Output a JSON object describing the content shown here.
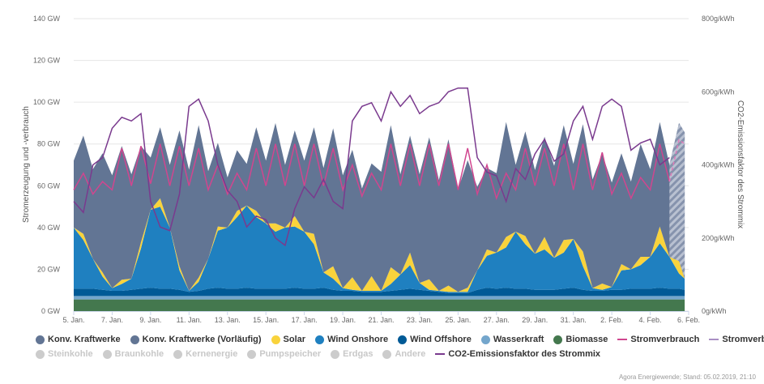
{
  "chart_data": {
    "type": "area",
    "y_left": {
      "label": "Stromerzeugung und -verbrauch",
      "range": [
        0,
        140
      ],
      "ticks": [
        "0 GW",
        "20 GW",
        "40 GW",
        "60 GW",
        "80 GW",
        "100 GW",
        "120 GW",
        "140 GW"
      ]
    },
    "y_right": {
      "label": "CO2-Emissionsfaktor des Strommix",
      "range": [
        0,
        800
      ],
      "ticks": [
        "0g/kWh",
        "200g/kWh",
        "400g/kWh",
        "600g/kWh",
        "800g/kWh"
      ]
    },
    "x_range": [
      "2019-01-05 00:00",
      "2019-02-06 00:00"
    ],
    "x_ticks": [
      "5. Jan.",
      "7. Jan.",
      "9. Jan.",
      "11. Jan.",
      "13. Jan.",
      "15. Jan.",
      "17. Jan.",
      "19. Jan.",
      "21. Jan.",
      "23. Jan.",
      "25. Jan.",
      "27. Jan.",
      "29. Jan.",
      "31. Jan.",
      "2. Feb.",
      "4. Feb.",
      "6. Feb."
    ],
    "grid": true,
    "preliminary_from": "2019-02-05 00:00",
    "t": [
      "2019-01-05 00:00",
      "2019-01-05 12:00",
      "2019-01-06 00:00",
      "2019-01-06 12:00",
      "2019-01-07 00:00",
      "2019-01-07 12:00",
      "2019-01-08 00:00",
      "2019-01-08 12:00",
      "2019-01-09 00:00",
      "2019-01-09 12:00",
      "2019-01-10 00:00",
      "2019-01-10 12:00",
      "2019-01-11 00:00",
      "2019-01-11 12:00",
      "2019-01-12 00:00",
      "2019-01-12 12:00",
      "2019-01-13 00:00",
      "2019-01-13 12:00",
      "2019-01-14 00:00",
      "2019-01-14 12:00",
      "2019-01-15 00:00",
      "2019-01-15 12:00",
      "2019-01-16 00:00",
      "2019-01-16 12:00",
      "2019-01-17 00:00",
      "2019-01-17 12:00",
      "2019-01-18 00:00",
      "2019-01-18 12:00",
      "2019-01-19 00:00",
      "2019-01-19 12:00",
      "2019-01-20 00:00",
      "2019-01-20 12:00",
      "2019-01-21 00:00",
      "2019-01-21 12:00",
      "2019-01-22 00:00",
      "2019-01-22 12:00",
      "2019-01-23 00:00",
      "2019-01-23 12:00",
      "2019-01-24 00:00",
      "2019-01-24 12:00",
      "2019-01-25 00:00",
      "2019-01-25 12:00",
      "2019-01-26 00:00",
      "2019-01-26 12:00",
      "2019-01-27 00:00",
      "2019-01-27 12:00",
      "2019-01-28 00:00",
      "2019-01-28 12:00",
      "2019-01-29 00:00",
      "2019-01-29 12:00",
      "2019-01-30 00:00",
      "2019-01-30 12:00",
      "2019-01-31 00:00",
      "2019-01-31 12:00",
      "2019-02-01 00:00",
      "2019-02-01 12:00",
      "2019-02-02 00:00",
      "2019-02-02 12:00",
      "2019-02-03 00:00",
      "2019-02-03 12:00",
      "2019-02-04 00:00",
      "2019-02-04 12:00",
      "2019-02-05 00:00",
      "2019-02-05 12:00",
      "2019-02-05 19:00"
    ],
    "stack": [
      {
        "name": "Biomasse",
        "color": "#44784e",
        "values": [
          5.6,
          5.6,
          5.6,
          5.6,
          5.6,
          5.6,
          5.6,
          5.6,
          5.6,
          5.6,
          5.6,
          5.6,
          5.6,
          5.6,
          5.6,
          5.6,
          5.6,
          5.6,
          5.6,
          5.6,
          5.6,
          5.6,
          5.6,
          5.6,
          5.6,
          5.6,
          5.6,
          5.6,
          5.6,
          5.6,
          5.6,
          5.6,
          5.6,
          5.6,
          5.6,
          5.6,
          5.6,
          5.6,
          5.6,
          5.6,
          5.6,
          5.6,
          5.6,
          5.6,
          5.6,
          5.6,
          5.6,
          5.6,
          5.6,
          5.6,
          5.6,
          5.6,
          5.6,
          5.6,
          5.6,
          5.6,
          5.6,
          5.6,
          5.6,
          5.6,
          5.6,
          5.6,
          5.6,
          5.6,
          5.6
        ]
      },
      {
        "name": "Wasserkraft",
        "color": "#74a6cc",
        "values": [
          1.6,
          1.6,
          1.6,
          1.6,
          1.6,
          1.6,
          1.6,
          1.6,
          1.6,
          1.6,
          1.6,
          1.6,
          1.6,
          1.6,
          1.6,
          1.6,
          1.6,
          1.6,
          1.6,
          1.6,
          1.6,
          1.6,
          1.6,
          1.6,
          1.6,
          1.6,
          1.6,
          1.6,
          1.6,
          1.6,
          1.6,
          1.6,
          1.6,
          1.6,
          1.6,
          1.6,
          1.6,
          1.6,
          1.6,
          1.6,
          1.6,
          1.6,
          1.6,
          1.6,
          1.6,
          1.6,
          1.6,
          1.6,
          1.6,
          1.6,
          1.6,
          1.6,
          1.6,
          1.6,
          1.6,
          1.6,
          1.6,
          1.6,
          1.6,
          1.6,
          1.6,
          1.6,
          1.6,
          1.6,
          1.6
        ]
      },
      {
        "name": "Wind Offshore",
        "color": "#005a96",
        "values": [
          3.5,
          3.5,
          3.5,
          3,
          2.5,
          2.5,
          3,
          3.5,
          4,
          3.5,
          3.5,
          3,
          2,
          2.5,
          3.5,
          4,
          3.5,
          3.5,
          4,
          3.5,
          3.5,
          3.5,
          3.5,
          4,
          3.5,
          3.5,
          4,
          3,
          2.5,
          2.5,
          2,
          2,
          2,
          2.5,
          3,
          3.5,
          3,
          2.5,
          2,
          1.5,
          1.5,
          1.5,
          3,
          4,
          3.5,
          4,
          3.5,
          3.5,
          3,
          3,
          3,
          3.5,
          4,
          3,
          2.5,
          2.5,
          3,
          3,
          3.5,
          3.5,
          3.5,
          4,
          3.5,
          3.5,
          3
        ]
      },
      {
        "name": "Wind Onshore",
        "color": "#1f80c0",
        "values": [
          29.3,
          23.3,
          14.3,
          6.3,
          1.3,
          3.3,
          5.3,
          19.3,
          37.3,
          39.3,
          29.3,
          9.3,
          0.5,
          4.3,
          14.3,
          27.3,
          29.3,
          34.3,
          39.3,
          34.3,
          31.3,
          27.3,
          29.3,
          29.3,
          27.3,
          21.3,
          7.3,
          5.3,
          1.3,
          0.5,
          0.5,
          0.5,
          0.5,
          3.3,
          7.3,
          11.3,
          3.3,
          0.5,
          0.5,
          0.5,
          0.5,
          0.5,
          9.3,
          15.3,
          17.3,
          19.3,
          27.3,
          21.3,
          17.3,
          19.3,
          15.3,
          17.3,
          23.3,
          11.3,
          1.3,
          0.5,
          1.3,
          9.3,
          9.3,
          11.3,
          15.3,
          21.3,
          15.3,
          7.3,
          5.3
        ]
      },
      {
        "name": "Solar",
        "color": "#f9d33c",
        "values": [
          0,
          3,
          0,
          2,
          0,
          2,
          0,
          3,
          0,
          4,
          0,
          2,
          0,
          2,
          0,
          2,
          0,
          3,
          0,
          3,
          0,
          4,
          0,
          5,
          0,
          5,
          0,
          6,
          0,
          6,
          0,
          7,
          0,
          8,
          0,
          6,
          0,
          5,
          0,
          3,
          0,
          2,
          0,
          3,
          0,
          5,
          0,
          4,
          0,
          6,
          0,
          6,
          0,
          7,
          0,
          3,
          0,
          3,
          0,
          4,
          0,
          8,
          0,
          6,
          0
        ]
      },
      {
        "name": "Konv. Kraftwerke",
        "color": "#627594",
        "values": [
          32,
          47,
          43,
          57,
          54,
          64,
          50,
          46,
          25,
          34,
          30,
          65,
          58,
          73,
          42,
          40,
          24,
          29,
          20,
          40,
          30,
          48,
          30,
          41,
          34,
          51,
          50,
          66,
          54,
          61,
          49,
          54,
          57,
          68,
          48,
          56,
          52,
          68,
          53,
          70,
          49,
          61,
          40,
          39,
          38,
          55,
          32,
          50,
          40,
          48,
          44,
          55,
          36,
          61,
          52,
          62,
          50,
          53,
          42,
          54,
          42,
          50,
          44,
          66,
          70
        ]
      }
    ],
    "lines": [
      {
        "name": "Stromverbrauch",
        "axis": "left",
        "color": "#d0468f",
        "values": [
          58,
          66,
          56,
          62,
          58,
          78,
          60,
          79,
          61,
          80,
          60,
          79,
          60,
          78,
          58,
          70,
          56,
          66,
          58,
          78,
          60,
          80,
          60,
          80,
          60,
          80,
          60,
          78,
          58,
          70,
          55,
          66,
          58,
          80,
          60,
          80,
          60,
          80,
          60,
          80,
          58,
          78,
          56,
          70,
          54,
          66,
          58,
          78,
          60,
          78,
          60,
          80,
          58,
          80,
          58,
          76,
          56,
          66,
          54,
          64,
          58,
          80,
          62,
          82,
          80
        ]
      },
      {
        "name": "CO2-Emissionsfaktor des Strommix",
        "axis": "right",
        "color": "#7a3a8e",
        "values": [
          300,
          270,
          400,
          420,
          500,
          530,
          520,
          540,
          300,
          230,
          220,
          320,
          560,
          580,
          520,
          400,
          330,
          300,
          230,
          260,
          250,
          200,
          180,
          280,
          340,
          310,
          360,
          300,
          280,
          520,
          560,
          570,
          520,
          600,
          560,
          590,
          540,
          560,
          570,
          600,
          610,
          610,
          420,
          380,
          370,
          300,
          390,
          360,
          430,
          470,
          410,
          430,
          520,
          560,
          470,
          560,
          580,
          560,
          440,
          460,
          470,
          400,
          420,
          null,
          null
        ]
      }
    ]
  },
  "legend": {
    "row1": [
      {
        "label": "Konv. Kraftwerke",
        "color": "#627594",
        "kind": "dot"
      },
      {
        "label": "Konv. Kraftwerke (Vorläufig)",
        "color": "#627594",
        "kind": "dot"
      },
      {
        "label": "Solar",
        "color": "#f9d33c",
        "kind": "dot"
      },
      {
        "label": "Wind Onshore",
        "color": "#1f80c0",
        "kind": "dot"
      },
      {
        "label": "Wind Offshore",
        "color": "#005a96",
        "kind": "dot"
      },
      {
        "label": "Wasserkraft",
        "color": "#74a6cc",
        "kind": "dot"
      },
      {
        "label": "Biomasse",
        "color": "#44784e",
        "kind": "dot"
      },
      {
        "label": "Stromverbrauch",
        "color": "#d0468f",
        "kind": "line"
      },
      {
        "label": "Stromverbrauch (Vorläufig)",
        "color": "#a98fc4",
        "kind": "dash"
      }
    ],
    "row2": [
      {
        "label": "Steinkohle",
        "color": "#cccccc",
        "kind": "dot",
        "off": true
      },
      {
        "label": "Braunkohle",
        "color": "#cccccc",
        "kind": "dot",
        "off": true
      },
      {
        "label": "Kernenergie",
        "color": "#cccccc",
        "kind": "dot",
        "off": true
      },
      {
        "label": "Pumpspeicher",
        "color": "#cccccc",
        "kind": "dot",
        "off": true
      },
      {
        "label": "Erdgas",
        "color": "#cccccc",
        "kind": "dot",
        "off": true
      },
      {
        "label": "Andere",
        "color": "#cccccc",
        "kind": "dot",
        "off": true
      },
      {
        "label": "CO2-Emissionsfaktor des Strommix",
        "color": "#7a3a8e",
        "kind": "line"
      }
    ]
  },
  "credit": "Agora Energiewende; Stand: 05.02.2019, 21:10"
}
